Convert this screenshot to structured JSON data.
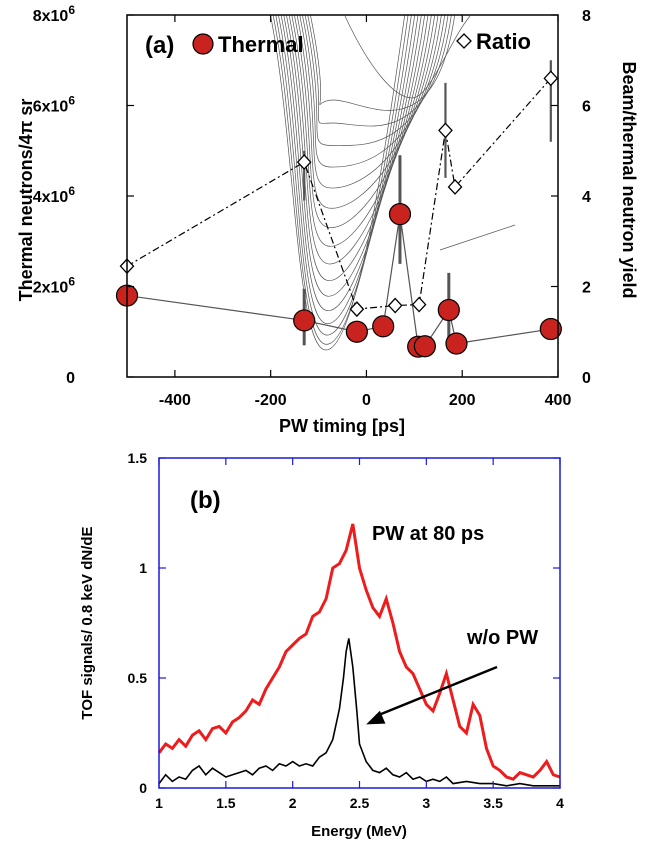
{
  "chart_data": [
    {
      "type": "scatter",
      "panel_label": "(a)",
      "xlabel": "PW timing [ps]",
      "ylabel": "Thermal neutrons/4π sr",
      "ylabel_right": "Beam/thermal neutron yield",
      "xlim": [
        -500,
        400
      ],
      "ylim": [
        0,
        8000000
      ],
      "ylim_right": [
        0,
        8
      ],
      "x_ticks": [
        "-400",
        "-200",
        "0",
        "200",
        "400"
      ],
      "y_ticks_left": [
        "0",
        "2x10^6",
        "4x10^6",
        "6x10^6",
        "8x10^6"
      ],
      "y_ticks_right": [
        "0",
        "2",
        "4",
        "6",
        "8"
      ],
      "legend_position": "top",
      "series": [
        {
          "name": "Thermal",
          "axis": "left",
          "color": "#c8231f",
          "marker": "circle",
          "line": "solid",
          "points": [
            {
              "x": -500,
              "y": 1800000
            },
            {
              "x": -130,
              "y": 1250000,
              "err_low": 700000,
              "err_high": 1950000
            },
            {
              "x": -20,
              "y": 1000000
            },
            {
              "x": 35,
              "y": 1120000
            },
            {
              "x": 70,
              "y": 3600000,
              "err_low": 2500000,
              "err_high": 4900000
            },
            {
              "x": 108,
              "y": 670000
            },
            {
              "x": 122,
              "y": 680000
            },
            {
              "x": 172,
              "y": 1480000,
              "err_low": 800000,
              "err_high": 2300000
            },
            {
              "x": 188,
              "y": 740000
            },
            {
              "x": 385,
              "y": 1060000
            }
          ]
        },
        {
          "name": "Ratio",
          "axis": "right",
          "color": "#000000",
          "marker": "diamond-open",
          "line": "dash-dot",
          "points": [
            {
              "x": -500,
              "y": 2.45
            },
            {
              "x": -130,
              "y": 4.75,
              "err_low": 3.9,
              "err_high": 5.0
            },
            {
              "x": -20,
              "y": 1.5
            },
            {
              "x": 60,
              "y": 1.58
            },
            {
              "x": 110,
              "y": 1.6
            },
            {
              "x": 165,
              "y": 5.45,
              "err_low": 4.4,
              "err_high": 6.5
            },
            {
              "x": 185,
              "y": 4.2
            },
            {
              "x": 385,
              "y": 6.6,
              "err_low": 5.2,
              "err_high": 7.0
            }
          ]
        }
      ]
    },
    {
      "type": "line",
      "panel_label": "(b)",
      "xlabel": "Energy (MeV)",
      "ylabel": "TOF signals/ 0.8 keV  dN/dE",
      "xlim": [
        1,
        4
      ],
      "ylim": [
        0,
        1.5
      ],
      "x_ticks": [
        "1",
        "1.5",
        "2",
        "2.5",
        "3",
        "3.5",
        "4"
      ],
      "y_ticks": [
        "0",
        "0.5",
        "1",
        "1.5"
      ],
      "frame_color": "#1a1adc",
      "series": [
        {
          "name": "PW at 80 ps",
          "color": "#ee1c1c",
          "points": [
            [
              1.0,
              0.16
            ],
            [
              1.05,
              0.2
            ],
            [
              1.1,
              0.18
            ],
            [
              1.15,
              0.22
            ],
            [
              1.2,
              0.19
            ],
            [
              1.25,
              0.24
            ],
            [
              1.3,
              0.26
            ],
            [
              1.35,
              0.22
            ],
            [
              1.4,
              0.27
            ],
            [
              1.45,
              0.28
            ],
            [
              1.5,
              0.25
            ],
            [
              1.55,
              0.3
            ],
            [
              1.6,
              0.32
            ],
            [
              1.65,
              0.35
            ],
            [
              1.7,
              0.4
            ],
            [
              1.75,
              0.38
            ],
            [
              1.8,
              0.45
            ],
            [
              1.85,
              0.5
            ],
            [
              1.9,
              0.55
            ],
            [
              1.95,
              0.62
            ],
            [
              2.0,
              0.65
            ],
            [
              2.05,
              0.68
            ],
            [
              2.1,
              0.7
            ],
            [
              2.15,
              0.78
            ],
            [
              2.2,
              0.8
            ],
            [
              2.25,
              0.86
            ],
            [
              2.3,
              1.0
            ],
            [
              2.35,
              1.02
            ],
            [
              2.4,
              1.08
            ],
            [
              2.45,
              1.2
            ],
            [
              2.5,
              1.0
            ],
            [
              2.55,
              0.9
            ],
            [
              2.6,
              0.82
            ],
            [
              2.65,
              0.78
            ],
            [
              2.7,
              0.86
            ],
            [
              2.75,
              0.75
            ],
            [
              2.8,
              0.62
            ],
            [
              2.85,
              0.55
            ],
            [
              2.9,
              0.52
            ],
            [
              2.95,
              0.45
            ],
            [
              3.0,
              0.38
            ],
            [
              3.05,
              0.35
            ],
            [
              3.1,
              0.43
            ],
            [
              3.15,
              0.52
            ],
            [
              3.2,
              0.4
            ],
            [
              3.25,
              0.28
            ],
            [
              3.3,
              0.25
            ],
            [
              3.35,
              0.38
            ],
            [
              3.4,
              0.33
            ],
            [
              3.45,
              0.18
            ],
            [
              3.5,
              0.1
            ],
            [
              3.55,
              0.08
            ],
            [
              3.6,
              0.05
            ],
            [
              3.65,
              0.04
            ],
            [
              3.7,
              0.07
            ],
            [
              3.75,
              0.06
            ],
            [
              3.8,
              0.05
            ],
            [
              3.85,
              0.08
            ],
            [
              3.9,
              0.12
            ],
            [
              3.95,
              0.06
            ],
            [
              4.0,
              0.05
            ]
          ]
        },
        {
          "name": "w/o PW",
          "color": "#000000",
          "points": [
            [
              1.0,
              0.02
            ],
            [
              1.05,
              0.06
            ],
            [
              1.1,
              0.03
            ],
            [
              1.15,
              0.05
            ],
            [
              1.2,
              0.04
            ],
            [
              1.25,
              0.08
            ],
            [
              1.3,
              0.1
            ],
            [
              1.35,
              0.06
            ],
            [
              1.4,
              0.09
            ],
            [
              1.45,
              0.07
            ],
            [
              1.5,
              0.05
            ],
            [
              1.55,
              0.06
            ],
            [
              1.6,
              0.07
            ],
            [
              1.65,
              0.08
            ],
            [
              1.7,
              0.06
            ],
            [
              1.75,
              0.09
            ],
            [
              1.8,
              0.1
            ],
            [
              1.85,
              0.08
            ],
            [
              1.9,
              0.11
            ],
            [
              1.95,
              0.1
            ],
            [
              2.0,
              0.12
            ],
            [
              2.05,
              0.1
            ],
            [
              2.1,
              0.11
            ],
            [
              2.15,
              0.1
            ],
            [
              2.2,
              0.14
            ],
            [
              2.25,
              0.16
            ],
            [
              2.3,
              0.22
            ],
            [
              2.35,
              0.36
            ],
            [
              2.38,
              0.5
            ],
            [
              2.4,
              0.62
            ],
            [
              2.42,
              0.68
            ],
            [
              2.45,
              0.55
            ],
            [
              2.48,
              0.35
            ],
            [
              2.5,
              0.2
            ],
            [
              2.55,
              0.12
            ],
            [
              2.6,
              0.08
            ],
            [
              2.65,
              0.07
            ],
            [
              2.7,
              0.09
            ],
            [
              2.75,
              0.06
            ],
            [
              2.8,
              0.05
            ],
            [
              2.85,
              0.07
            ],
            [
              2.9,
              0.04
            ],
            [
              2.95,
              0.05
            ],
            [
              3.0,
              0.03
            ],
            [
              3.05,
              0.04
            ],
            [
              3.1,
              0.03
            ],
            [
              3.15,
              0.05
            ],
            [
              3.2,
              0.02
            ],
            [
              3.3,
              0.03
            ],
            [
              3.4,
              0.02
            ],
            [
              3.5,
              0.02
            ],
            [
              3.6,
              0.01
            ],
            [
              3.7,
              0.02
            ],
            [
              3.8,
              0.01
            ],
            [
              3.9,
              0.01
            ],
            [
              4.0,
              0.01
            ]
          ]
        }
      ],
      "annotations": [
        {
          "text": "PW at 80 ps"
        },
        {
          "text": "w/o PW",
          "arrow_to": {
            "x": 2.52,
            "y": 0.28
          }
        }
      ]
    }
  ]
}
